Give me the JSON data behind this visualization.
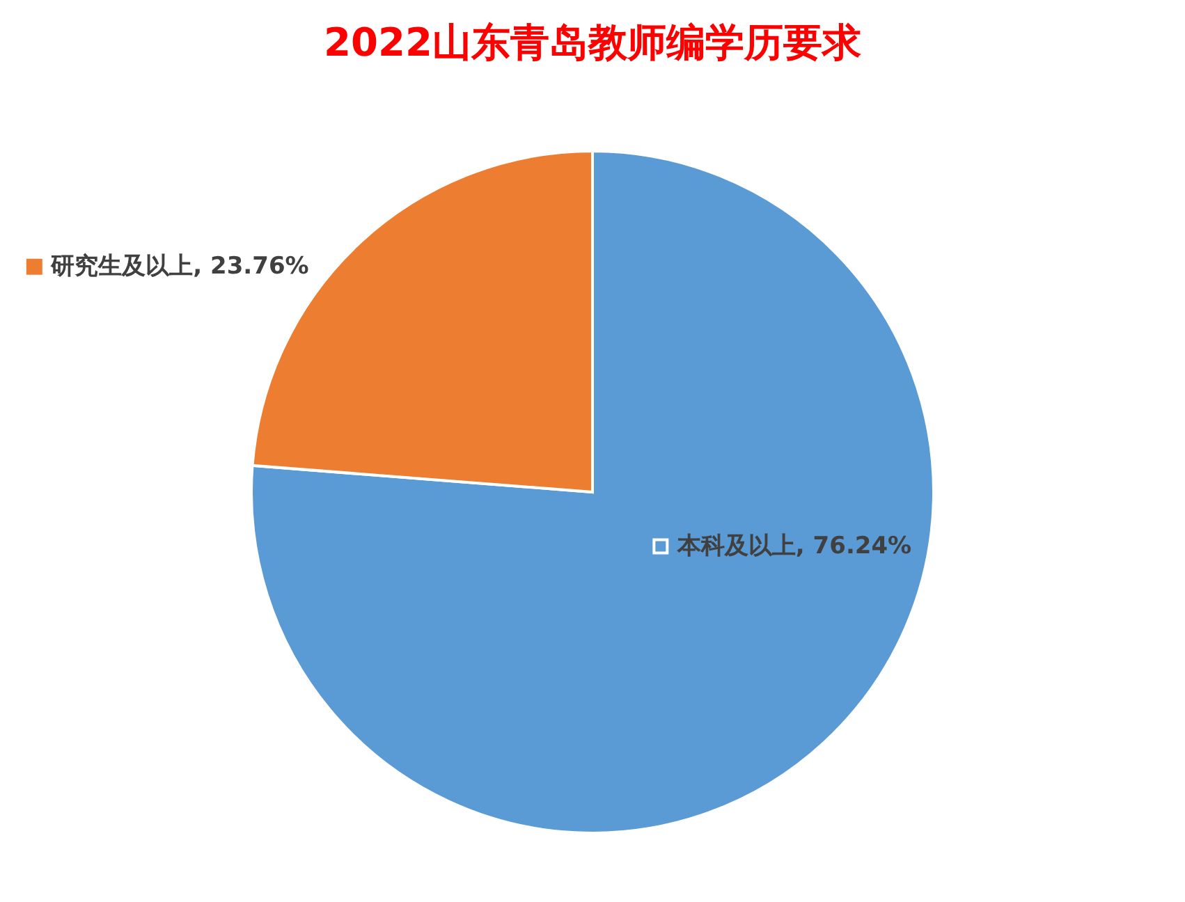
{
  "chart_data": {
    "type": "pie",
    "title": "2022山东青岛教师编学历要求",
    "categories": [
      "本科及以上",
      "研究生及以上"
    ],
    "values": [
      76.24,
      23.76
    ],
    "value_labels": [
      "76.24%",
      "23.76%"
    ],
    "colors": [
      "#5b9bd5",
      "#ed7d31"
    ],
    "legend": "left"
  }
}
